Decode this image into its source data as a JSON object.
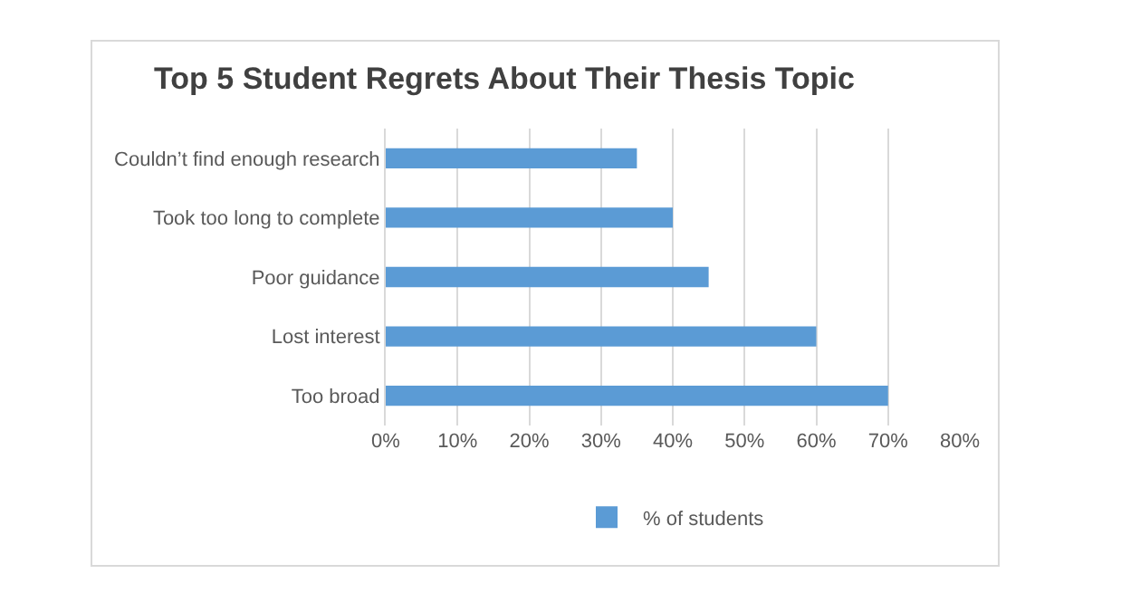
{
  "chart_data": {
    "type": "bar",
    "orientation": "horizontal",
    "title": "Top 5 Student Regrets About Their Thesis Topic",
    "categories": [
      "Couldn’t find enough research",
      "Took too long to complete",
      "Poor guidance",
      "Lost interest",
      "Too broad"
    ],
    "series": [
      {
        "name": "% of students",
        "color": "#5b9bd5",
        "values": [
          35,
          40,
          45,
          60,
          70
        ]
      }
    ],
    "xlim": [
      0,
      80
    ],
    "xticks": [
      {
        "value": 0,
        "label": "0%"
      },
      {
        "value": 10,
        "label": "10%"
      },
      {
        "value": 20,
        "label": "20%"
      },
      {
        "value": 30,
        "label": "30%"
      },
      {
        "value": 40,
        "label": "40%"
      },
      {
        "value": 50,
        "label": "50%"
      },
      {
        "value": 60,
        "label": "60%"
      },
      {
        "value": 70,
        "label": "70%"
      },
      {
        "value": 80,
        "label": "80%"
      }
    ],
    "grid": "x",
    "legend": "bottom"
  }
}
